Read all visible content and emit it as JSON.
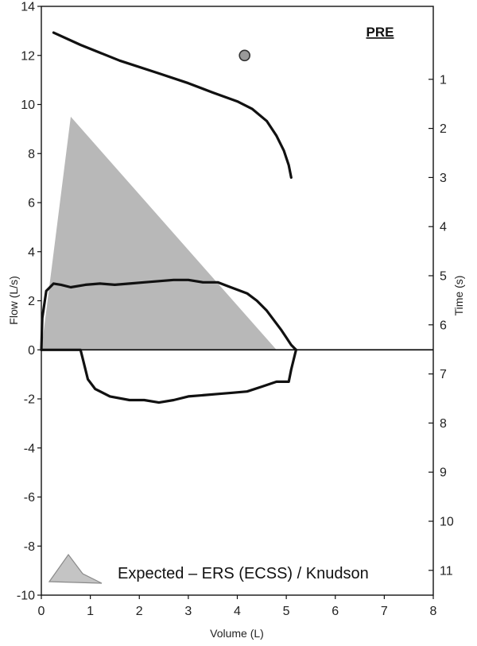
{
  "chart_data": {
    "type": "line",
    "panel_label": "PRE",
    "xlabel": "Volume (L)",
    "ylabel": "Flow (L/s)",
    "y2label": "Time (s)",
    "xlim": [
      0,
      8
    ],
    "ylim": [
      -10,
      14
    ],
    "y2lim": [
      0,
      11
    ],
    "y2_inverted": true,
    "grid": false,
    "x_ticks": [
      "0",
      "1",
      "2",
      "3",
      "4",
      "5",
      "6",
      "7",
      "8"
    ],
    "y_ticks": [
      "-10",
      "-8",
      "-6",
      "-4",
      "-2",
      "0",
      "2",
      "4",
      "6",
      "8",
      "10",
      "12",
      "14"
    ],
    "y2_ticks": [
      "1",
      "2",
      "3",
      "4",
      "5",
      "6",
      "7",
      "8",
      "9",
      "10",
      "11"
    ],
    "legend": {
      "placement": "bottom-left",
      "label": "Expected – ERS (ECSS) / Knudson"
    },
    "series": [
      {
        "role": "expected",
        "color": "#9a9a9a",
        "x": [
          0,
          0.6,
          4.8,
          5.2,
          0
        ],
        "y": [
          0,
          9.5,
          0,
          0,
          0
        ]
      },
      {
        "role": "expiratory",
        "color": "#111111",
        "x": [
          0,
          0.02,
          0.1,
          0.25,
          0.4,
          0.6,
          0.9,
          1.2,
          1.5,
          1.8,
          2.1,
          2.4,
          2.7,
          3.0,
          3.3,
          3.6,
          3.8,
          4.0,
          4.2,
          4.4,
          4.6,
          4.75,
          4.9,
          5.0,
          5.1,
          5.2
        ],
        "y": [
          0,
          1.3,
          2.4,
          2.7,
          2.65,
          2.55,
          2.65,
          2.7,
          2.65,
          2.7,
          2.75,
          2.8,
          2.85,
          2.85,
          2.75,
          2.75,
          2.6,
          2.45,
          2.3,
          2.0,
          1.6,
          1.2,
          0.8,
          0.5,
          0.2,
          0
        ]
      },
      {
        "role": "inspiratory",
        "color": "#111111",
        "x": [
          0,
          0.8,
          0.85,
          0.95,
          1.1,
          1.4,
          1.8,
          2.1,
          2.4,
          2.7,
          3.0,
          3.3,
          3.6,
          3.9,
          4.2,
          4.5,
          4.8,
          5.05,
          5.1,
          5.2
        ],
        "y": [
          0,
          0,
          -0.4,
          -1.2,
          -1.6,
          -1.9,
          -2.05,
          -2.05,
          -2.15,
          -2.05,
          -1.9,
          -1.85,
          -1.8,
          -1.75,
          -1.7,
          -1.5,
          -1.3,
          -1.3,
          -0.8,
          0
        ]
      },
      {
        "role": "volume-time",
        "color": "#111111",
        "axis": "y2",
        "x": [
          0.25,
          0.8,
          1.6,
          2.4,
          3.0,
          3.5,
          4.0,
          4.3,
          4.6,
          4.8,
          4.95,
          5.05,
          5.1
        ],
        "y": [
          0.05,
          0.3,
          0.62,
          0.88,
          1.08,
          1.27,
          1.45,
          1.6,
          1.85,
          2.15,
          2.45,
          2.75,
          3.0
        ]
      }
    ],
    "markers": [
      {
        "x": 4.15,
        "y": 12.0,
        "color": "#9a9a9a"
      }
    ]
  }
}
